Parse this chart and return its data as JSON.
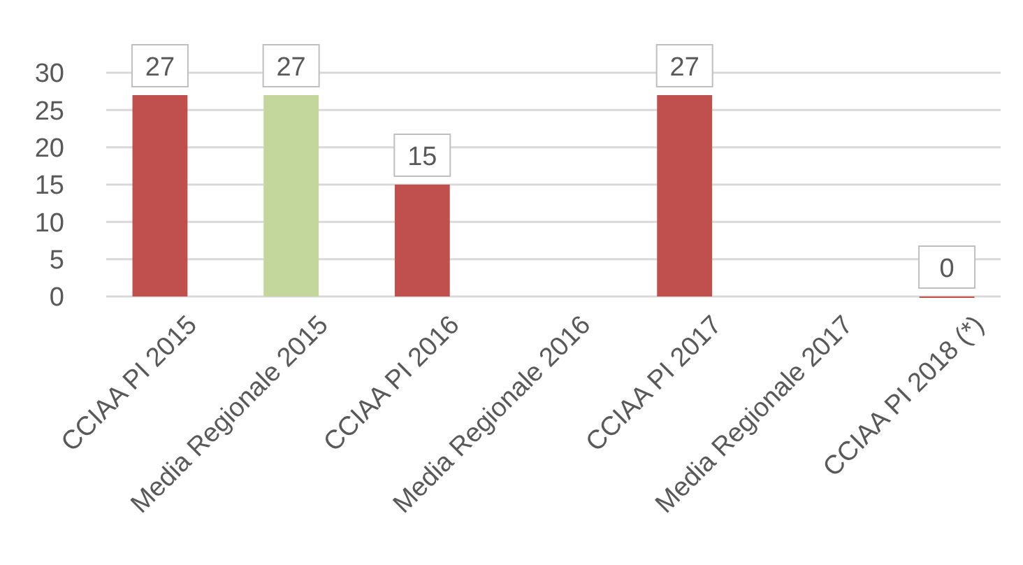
{
  "chart_data": {
    "type": "bar",
    "categories": [
      "CCIAA PI 2015",
      "Media Regionale 2015",
      "CCIAA PI 2016",
      "Media Regionale 2016",
      "CCIAA PI 2017",
      "Media Regionale 2017",
      "CCIAA PI 2018 (*)"
    ],
    "values": [
      27,
      27,
      15,
      null,
      27,
      null,
      0
    ],
    "colors": [
      "#c0504d",
      "#c3d69b",
      "#c0504d",
      null,
      "#c0504d",
      null,
      "#c0504d"
    ],
    "ylim": [
      0,
      30
    ],
    "yticks": [
      0,
      5,
      10,
      15,
      20,
      25,
      30
    ],
    "grid": "y",
    "data_labels": true
  }
}
